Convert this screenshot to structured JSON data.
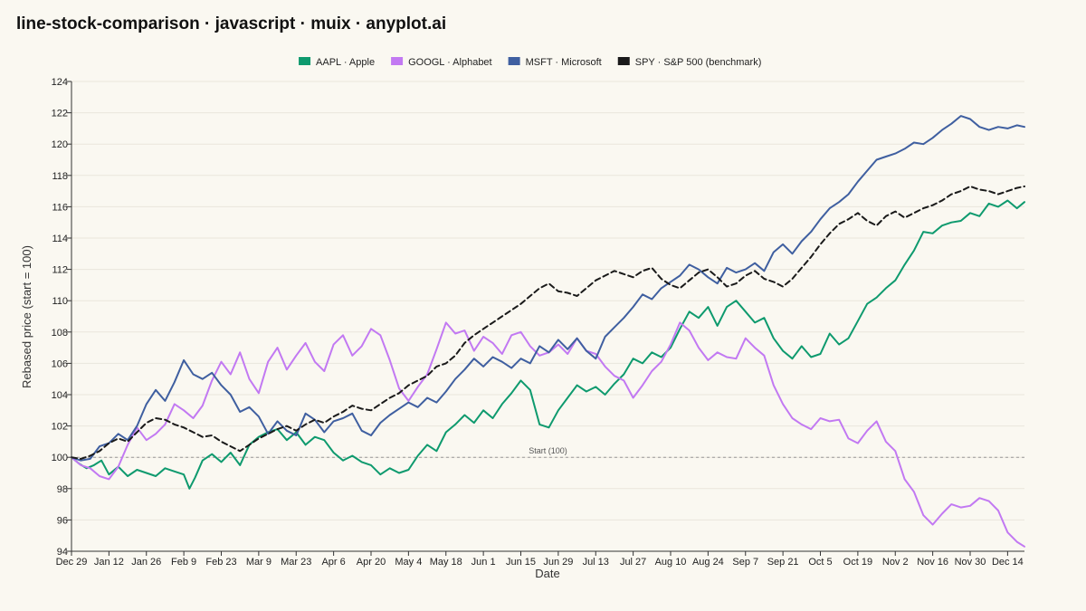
{
  "title": "line-stock-comparison · javascript · muix · anyplot.ai",
  "chart_data": {
    "type": "line",
    "xlabel": "Date",
    "ylabel": "Rebased price (start = 100)",
    "ylim": [
      94,
      124
    ],
    "yticks": [
      94,
      96,
      98,
      100,
      102,
      104,
      106,
      108,
      110,
      112,
      114,
      116,
      118,
      120,
      122,
      124
    ],
    "xticks": [
      "Dec 29",
      "Jan 12",
      "Jan 26",
      "Feb 9",
      "Feb 23",
      "Mar 9",
      "Mar 23",
      "Apr 6",
      "Apr 20",
      "May 4",
      "May 18",
      "Jun 1",
      "Jun 15",
      "Jun 29",
      "Jul 13",
      "Jul 27",
      "Aug 10",
      "Aug 24",
      "Sep 7",
      "Sep 21",
      "Oct 5",
      "Oct 19",
      "Nov 2",
      "Nov 16",
      "Nov 30",
      "Dec 14"
    ],
    "x_range_weeks": [
      0,
      50.9
    ],
    "grid": true,
    "legend_position": "top-center",
    "reference_line": {
      "value": 100,
      "label": "Start (100)"
    },
    "series": [
      {
        "name": "AAPL · Apple",
        "color": "#0E9A6E",
        "style": "solid",
        "x": [
          0,
          0.4,
          0.8,
          1.2,
          1.6,
          2,
          2.5,
          3,
          3.5,
          4,
          4.5,
          5,
          5.5,
          6,
          6.3,
          6.6,
          7,
          7.5,
          8,
          8.5,
          9,
          9.5,
          10,
          10.5,
          11,
          11.5,
          12,
          12.5,
          13,
          13.5,
          14,
          14.5,
          15,
          15.5,
          16,
          16.5,
          17,
          17.5,
          18,
          18.5,
          19,
          19.5,
          20,
          20.5,
          21,
          21.5,
          22,
          22.5,
          23,
          23.5,
          24,
          24.5,
          25,
          25.5,
          26,
          26.5,
          27,
          27.5,
          28,
          28.5,
          29,
          29.5,
          30,
          30.5,
          31,
          31.5,
          32,
          32.5,
          33,
          33.5,
          34,
          34.5,
          35,
          35.5,
          36,
          36.5,
          37,
          37.5,
          38,
          38.5,
          39,
          39.5,
          40,
          40.5,
          41,
          41.5,
          42,
          42.5,
          43,
          43.5,
          44,
          44.5,
          45,
          45.5,
          46,
          46.5,
          47,
          47.5,
          48,
          48.5,
          49,
          49.5,
          50,
          50.5,
          50.9
        ],
        "values": [
          100,
          99.6,
          99.3,
          99.5,
          99.8,
          98.9,
          99.4,
          98.8,
          99.2,
          99.0,
          98.8,
          99.3,
          99.1,
          98.9,
          98.0,
          98.7,
          99.8,
          100.2,
          99.7,
          100.3,
          99.5,
          100.8,
          101.3,
          101.6,
          101.8,
          101.1,
          101.6,
          100.8,
          101.3,
          101.1,
          100.3,
          99.8,
          100.1,
          99.7,
          99.5,
          98.9,
          99.3,
          99.0,
          99.2,
          100.1,
          100.8,
          100.4,
          101.6,
          102.1,
          102.7,
          102.2,
          103.0,
          102.5,
          103.4,
          104.1,
          104.9,
          104.3,
          102.1,
          101.9,
          103.0,
          103.8,
          104.6,
          104.2,
          104.5,
          104.0,
          104.7,
          105.3,
          106.3,
          106.0,
          106.7,
          106.4,
          107.0,
          108.2,
          109.3,
          108.9,
          109.6,
          108.4,
          109.6,
          110.0,
          109.3,
          108.6,
          108.9,
          107.6,
          106.8,
          106.3,
          107.1,
          106.4,
          106.6,
          107.9,
          107.2,
          107.6,
          108.7,
          109.8,
          110.2,
          110.8,
          111.3,
          112.3,
          113.2,
          114.4,
          114.3,
          114.8,
          115.0,
          115.1,
          115.6,
          115.4,
          116.2,
          116.0,
          116.4,
          115.9,
          116.3
        ]
      },
      {
        "name": "GOOGL · Alphabet",
        "color": "#C279F2",
        "style": "solid",
        "x": [
          0,
          0.5,
          1,
          1.5,
          2,
          2.5,
          3,
          3.5,
          4,
          4.5,
          5,
          5.5,
          6,
          6.5,
          7,
          7.5,
          8,
          8.5,
          9,
          9.5,
          10,
          10.5,
          11,
          11.5,
          12,
          12.5,
          13,
          13.5,
          14,
          14.5,
          15,
          15.5,
          16,
          16.5,
          17,
          17.5,
          18,
          18.5,
          19,
          19.5,
          20,
          20.5,
          21,
          21.5,
          22,
          22.5,
          23,
          23.5,
          24,
          24.5,
          25,
          25.5,
          26,
          26.5,
          27,
          27.5,
          28,
          28.5,
          29,
          29.5,
          30,
          30.5,
          31,
          31.5,
          32,
          32.5,
          33,
          33.5,
          34,
          34.5,
          35,
          35.5,
          36,
          36.5,
          37,
          37.5,
          38,
          38.5,
          39,
          39.5,
          40,
          40.5,
          41,
          41.5,
          42,
          42.5,
          43,
          43.5,
          44,
          44.5,
          45,
          45.5,
          46,
          46.5,
          47,
          47.5,
          48,
          48.5,
          49,
          49.5,
          50,
          50.5,
          50.9
        ],
        "values": [
          100,
          99.5,
          99.3,
          98.8,
          98.6,
          99.4,
          100.8,
          101.9,
          101.1,
          101.5,
          102.1,
          103.4,
          103.0,
          102.5,
          103.3,
          104.9,
          106.1,
          105.3,
          106.7,
          105.0,
          104.1,
          106.1,
          107.0,
          105.6,
          106.5,
          107.3,
          106.1,
          105.5,
          107.2,
          107.8,
          106.5,
          107.1,
          108.2,
          107.8,
          106.2,
          104.4,
          103.6,
          104.5,
          105.3,
          106.9,
          108.6,
          107.9,
          108.1,
          106.8,
          107.7,
          107.3,
          106.6,
          107.8,
          108.0,
          107.1,
          106.5,
          106.7,
          107.2,
          106.6,
          107.6,
          106.8,
          106.6,
          105.8,
          105.2,
          104.9,
          103.8,
          104.6,
          105.5,
          106.1,
          107.2,
          108.6,
          108.1,
          107.0,
          106.2,
          106.7,
          106.4,
          106.3,
          107.6,
          107.0,
          106.5,
          104.6,
          103.4,
          102.5,
          102.1,
          101.8,
          102.5,
          102.3,
          102.4,
          101.2,
          100.9,
          101.7,
          102.3,
          101.0,
          100.4,
          98.6,
          97.8,
          96.3,
          95.7,
          96.4,
          97.0,
          96.8,
          96.9,
          97.4,
          97.2,
          96.6,
          95.2,
          94.6,
          94.3
        ]
      },
      {
        "name": "MSFT · Microsoft",
        "color": "#3F5FA0",
        "style": "solid",
        "x": [
          0,
          0.5,
          1,
          1.5,
          2,
          2.5,
          3,
          3.5,
          4,
          4.5,
          5,
          5.5,
          6,
          6.5,
          7,
          7.5,
          8,
          8.5,
          9,
          9.5,
          10,
          10.5,
          11,
          11.5,
          12,
          12.5,
          13,
          13.5,
          14,
          14.5,
          15,
          15.5,
          16,
          16.5,
          17,
          17.5,
          18,
          18.5,
          19,
          19.5,
          20,
          20.5,
          21,
          21.5,
          22,
          22.5,
          23,
          23.5,
          24,
          24.5,
          25,
          25.5,
          26,
          26.5,
          27,
          27.5,
          28,
          28.5,
          29,
          29.5,
          30,
          30.5,
          31,
          31.5,
          32,
          32.5,
          33,
          33.5,
          34,
          34.5,
          35,
          35.5,
          36,
          36.5,
          37,
          37.5,
          38,
          38.5,
          39,
          39.5,
          40,
          40.5,
          41,
          41.5,
          42,
          42.5,
          43,
          43.5,
          44,
          44.5,
          45,
          45.5,
          46,
          46.5,
          47,
          47.5,
          48,
          48.5,
          49,
          49.5,
          50,
          50.5,
          50.9
        ],
        "values": [
          100,
          99.8,
          99.9,
          100.7,
          100.9,
          101.5,
          101.1,
          102.0,
          103.4,
          104.3,
          103.6,
          104.8,
          106.2,
          105.3,
          105.0,
          105.4,
          104.6,
          104.0,
          102.9,
          103.2,
          102.6,
          101.5,
          102.3,
          101.7,
          101.4,
          102.8,
          102.4,
          101.6,
          102.3,
          102.5,
          102.8,
          101.7,
          101.4,
          102.2,
          102.7,
          103.1,
          103.5,
          103.2,
          103.8,
          103.5,
          104.2,
          105.0,
          105.6,
          106.3,
          105.8,
          106.4,
          106.1,
          105.7,
          106.3,
          106.0,
          107.1,
          106.7,
          107.5,
          106.9,
          107.6,
          106.8,
          106.3,
          107.7,
          108.3,
          108.9,
          109.6,
          110.4,
          110.1,
          110.8,
          111.2,
          111.6,
          112.3,
          112.0,
          111.5,
          111.1,
          112.1,
          111.8,
          112.0,
          112.4,
          111.9,
          113.1,
          113.6,
          113.0,
          113.8,
          114.4,
          115.2,
          115.9,
          116.3,
          116.8,
          117.6,
          118.3,
          119.0,
          119.2,
          119.4,
          119.7,
          120.1,
          120.0,
          120.4,
          120.9,
          121.3,
          121.8,
          121.6,
          121.1,
          120.9,
          121.1,
          121.0,
          121.2,
          121.1
        ]
      },
      {
        "name": "SPY · S&P 500 (benchmark)",
        "color": "#1a1a1a",
        "style": "dashed",
        "x": [
          0,
          0.5,
          1,
          1.5,
          2,
          2.5,
          3,
          3.5,
          4,
          4.5,
          5,
          5.5,
          6,
          6.5,
          7,
          7.5,
          8,
          8.5,
          9,
          9.5,
          10,
          10.5,
          11,
          11.5,
          12,
          12.5,
          13,
          13.5,
          14,
          14.5,
          15,
          15.5,
          16,
          16.5,
          17,
          17.5,
          18,
          18.5,
          19,
          19.5,
          20,
          20.5,
          21,
          21.5,
          22,
          22.5,
          23,
          23.5,
          24,
          24.5,
          25,
          25.5,
          26,
          26.5,
          27,
          27.5,
          28,
          28.5,
          29,
          29.5,
          30,
          30.5,
          31,
          31.5,
          32,
          32.5,
          33,
          33.5,
          34,
          34.5,
          35,
          35.5,
          36,
          36.5,
          37,
          37.5,
          38,
          38.5,
          39,
          39.5,
          40,
          40.5,
          41,
          41.5,
          42,
          42.5,
          43,
          43.5,
          44,
          44.5,
          45,
          45.5,
          46,
          46.5,
          47,
          47.5,
          48,
          48.5,
          49,
          49.5,
          50,
          50.5,
          50.9
        ],
        "values": [
          100,
          99.9,
          100.1,
          100.4,
          100.9,
          101.2,
          101.0,
          101.6,
          102.2,
          102.5,
          102.4,
          102.1,
          101.9,
          101.6,
          101.3,
          101.4,
          101.0,
          100.7,
          100.4,
          100.8,
          101.2,
          101.5,
          101.8,
          102.0,
          101.7,
          102.1,
          102.4,
          102.2,
          102.6,
          102.9,
          103.3,
          103.1,
          103.0,
          103.4,
          103.8,
          104.1,
          104.6,
          104.9,
          105.2,
          105.8,
          106.0,
          106.5,
          107.3,
          107.8,
          108.2,
          108.6,
          109.0,
          109.4,
          109.8,
          110.3,
          110.8,
          111.1,
          110.6,
          110.5,
          110.3,
          110.8,
          111.3,
          111.6,
          111.9,
          111.7,
          111.5,
          111.9,
          112.1,
          111.4,
          111.0,
          110.8,
          111.3,
          111.8,
          112.0,
          111.5,
          110.9,
          111.1,
          111.6,
          111.9,
          111.4,
          111.2,
          110.9,
          111.4,
          112.1,
          112.8,
          113.6,
          114.3,
          114.9,
          115.2,
          115.6,
          115.1,
          114.8,
          115.4,
          115.7,
          115.3,
          115.6,
          115.9,
          116.1,
          116.4,
          116.8,
          117.0,
          117.3,
          117.1,
          117.0,
          116.8,
          117.0,
          117.2,
          117.3
        ]
      }
    ]
  }
}
